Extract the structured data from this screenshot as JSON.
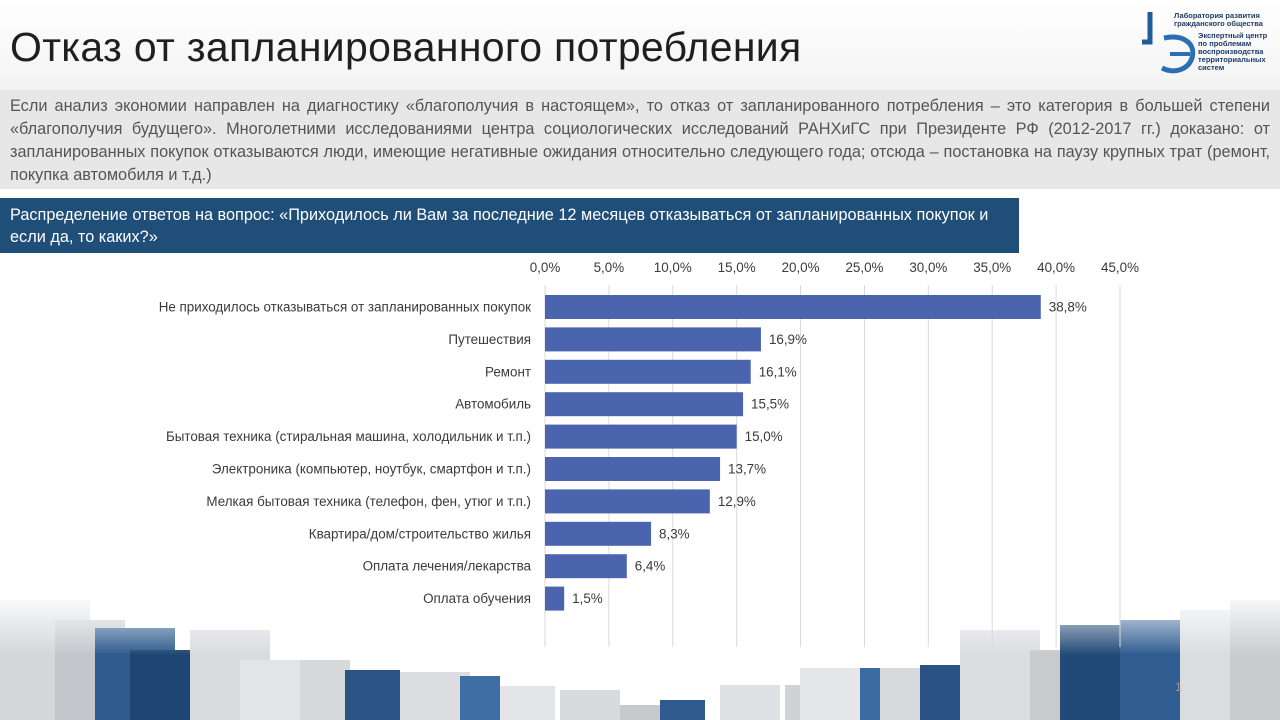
{
  "slide": {
    "title": "Отказ от запланированного потребления",
    "intro": "Если анализ экономии направлен на диагностику «благополучия в настоящем», то отказ от запланированного потребления – это категория в большей степени «благополучия будущего». Многолетними исследованиями центра социологических исследований РАНХиГС при Президенте РФ (2012-2017 гг.) доказано: от запланированных покупок отказываются люди, имеющие негативные ожидания относительно следующего года; отсюда – постановка на паузу крупных трат (ремонт, покупка автомобиля и т.д.)",
    "question": "Распределение ответов на вопрос: «Приходилось ли Вам за последние 12 месяцев отказываться от запланированных покупок и если да, то каких?»",
    "page_number": "1"
  },
  "logo": {
    "line1": "Лаборатория развития",
    "line2": "гражданского общества",
    "line3": "Экспертный центр",
    "line4": "по проблемам",
    "line5": "воспроизводства",
    "line6": "территориальных",
    "line7": "систем"
  },
  "colors": {
    "bar": "#4a64ad",
    "header_band": "#1f4e79",
    "intro_band": "#e7e7e7"
  },
  "chart_data": {
    "type": "bar",
    "orientation": "horizontal",
    "categories": [
      "Не приходилось отказываться от запланированных покупок",
      "Путешествия",
      "Ремонт",
      "Автомобиль",
      "Бытовая техника (стиральная машина, холодильник и т.п.)",
      "Электроника (компьютер, ноутбук, смартфон и т.п.)",
      "Мелкая бытовая техника (телефон, фен, утюг и т.п.)",
      "Квартира/дом/строительство жилья",
      "Оплата лечения/лекарства",
      "Оплата обучения"
    ],
    "values": [
      38.8,
      16.9,
      16.1,
      15.5,
      15.0,
      13.7,
      12.9,
      8.3,
      6.4,
      1.5
    ],
    "value_labels": [
      "38,8%",
      "16,9%",
      "16,1%",
      "15,5%",
      "15,0%",
      "13,7%",
      "12,9%",
      "8,3%",
      "6,4%",
      "1,5%"
    ],
    "xlim": [
      0,
      45
    ],
    "ticks": [
      0,
      5,
      10,
      15,
      20,
      25,
      30,
      35,
      40,
      45
    ],
    "tick_labels": [
      "0,0%",
      "5,0%",
      "10,0%",
      "15,0%",
      "20,0%",
      "25,0%",
      "30,0%",
      "35,0%",
      "40,0%",
      "45,0%"
    ],
    "axis_position": "top",
    "grid": true,
    "xlabel": "",
    "ylabel": ""
  }
}
